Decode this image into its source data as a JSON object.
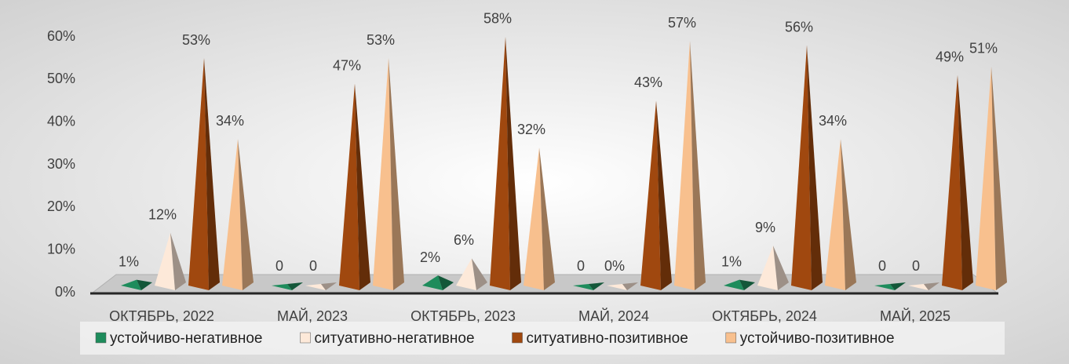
{
  "chart_data": {
    "type": "pyramid",
    "categories": [
      "ОКТЯБРЬ, 2022",
      "МАЙ, 2023",
      "ОКТЯБРЬ, 2023",
      "МАЙ, 2024",
      "ОКТЯБРЬ, 2024",
      "МАЙ, 2025"
    ],
    "series": [
      {
        "name": "устойчиво-негативное",
        "color": "#1e8c5c",
        "values": [
          1,
          0,
          2,
          0,
          1,
          0
        ],
        "value_labels": [
          "1%",
          "0",
          "2%",
          "0",
          "1%",
          "0"
        ]
      },
      {
        "name": "ситуативно-негативное",
        "color": "#fde9d9",
        "values": [
          12,
          0,
          6,
          0,
          9,
          0
        ],
        "value_labels": [
          "12%",
          "0",
          "6%",
          "0%",
          "9%",
          "0"
        ]
      },
      {
        "name": "ситуативно-позитивное",
        "color": "#a0480f",
        "values": [
          53,
          47,
          58,
          43,
          56,
          49
        ],
        "value_labels": [
          "53%",
          "47%",
          "58%",
          "43%",
          "56%",
          "49%"
        ]
      },
      {
        "name": "устойчиво-позитивное",
        "color": "#f8c08e",
        "values": [
          34,
          53,
          32,
          57,
          34,
          51
        ],
        "value_labels": [
          "34%",
          "53%",
          "32%",
          "57%",
          "34%",
          "51%"
        ]
      }
    ],
    "ylim": [
      0,
      60
    ],
    "yticks": [
      {
        "value": 0,
        "label": "0%"
      },
      {
        "value": 10,
        "label": "10%"
      },
      {
        "value": 20,
        "label": "20%"
      },
      {
        "value": 30,
        "label": "30%"
      },
      {
        "value": 40,
        "label": "40%"
      },
      {
        "value": 50,
        "label": "50%"
      },
      {
        "value": 60,
        "label": "60%"
      }
    ],
    "legend": "bottom"
  }
}
